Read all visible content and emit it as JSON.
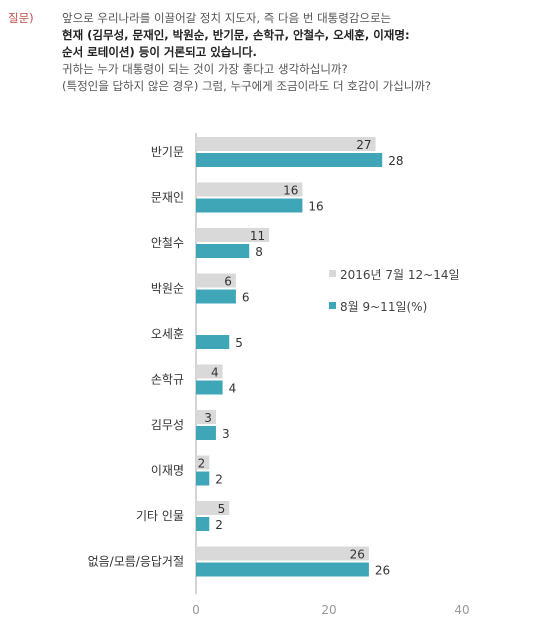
{
  "question": {
    "tag": "질문)",
    "lines": [
      "앞으로 우리나라를 이끌어갈 정치 지도자, 즉 다음 번 대통령감으로는",
      "현재 (김무성, 문재인, 박원순, 반기문, 손학규, 안철수, 오세훈, 이재명:",
      "순서 로테이션) 등이 거론되고 있습니다.",
      "귀하는 누가 대통령이 되는 것이 가장 좋다고 생각하십니까?",
      "(특정인을 답하지 않은 경우) 그럼, 누구에게 조금이라도 더 호감이 가십니까?"
    ]
  },
  "chart_data": {
    "type": "bar",
    "orientation": "horizontal",
    "categories": [
      "반기문",
      "문재인",
      "안철수",
      "박원순",
      "오세훈",
      "손학규",
      "김무성",
      "이재명",
      "기타 인물",
      "없음/모름/응답거절"
    ],
    "series": [
      {
        "name": "2016년 7월 12~14일",
        "color": "#d9d9d9",
        "values": [
          27,
          16,
          11,
          6,
          null,
          4,
          3,
          2,
          5,
          26
        ]
      },
      {
        "name": "8월 9~11일(%)",
        "color": "#3fa6b8",
        "values": [
          28,
          16,
          8,
          6,
          5,
          4,
          3,
          2,
          2,
          26
        ]
      }
    ],
    "xlim": [
      0,
      40
    ],
    "xticks": [
      0,
      20,
      40
    ],
    "grid": false,
    "legend": "right"
  }
}
